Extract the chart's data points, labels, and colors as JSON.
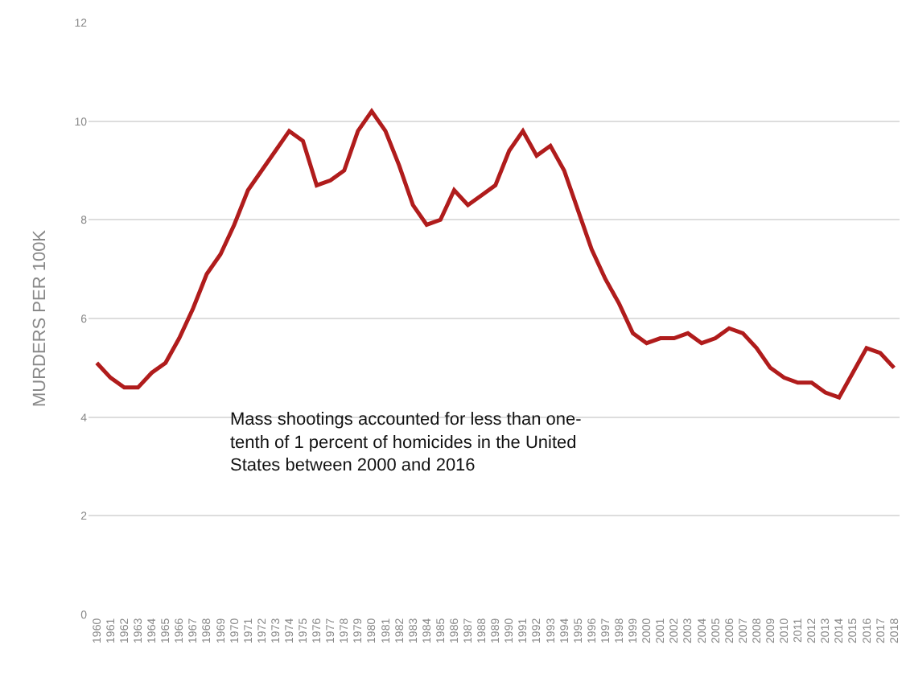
{
  "chart_data": {
    "type": "line",
    "ylabel": "MURDERS PER 100K",
    "categories": [
      "1960",
      "1961",
      "1962",
      "1963",
      "1964",
      "1965",
      "1966",
      "1967",
      "1968",
      "1969",
      "1970",
      "1971",
      "1972",
      "1973",
      "1974",
      "1975",
      "1976",
      "1977",
      "1978",
      "1979",
      "1980",
      "1981",
      "1982",
      "1983",
      "1984",
      "1985",
      "1986",
      "1987",
      "1988",
      "1989",
      "1990",
      "1991",
      "1992",
      "1993",
      "1994",
      "1995",
      "1996",
      "1997",
      "1998",
      "1999",
      "2000",
      "2001",
      "2002",
      "2003",
      "2004",
      "2005",
      "2006",
      "2007",
      "2008",
      "2009",
      "2010",
      "2011",
      "2012",
      "2013",
      "2014",
      "2015",
      "2016",
      "2017",
      "2018"
    ],
    "series": [
      {
        "color": "#b01c1c",
        "values": [
          5.1,
          4.8,
          4.6,
          4.6,
          4.9,
          5.1,
          5.6,
          6.2,
          6.9,
          7.3,
          7.9,
          8.6,
          9.0,
          9.4,
          9.8,
          9.6,
          8.7,
          8.8,
          9.0,
          9.8,
          10.2,
          9.8,
          9.1,
          8.3,
          7.9,
          8.0,
          8.6,
          8.3,
          8.5,
          8.7,
          9.4,
          9.8,
          9.3,
          9.5,
          9.0,
          8.2,
          7.4,
          6.8,
          6.3,
          5.7,
          5.5,
          5.6,
          5.6,
          5.7,
          5.5,
          5.6,
          5.8,
          5.7,
          5.4,
          5.0,
          4.8,
          4.7,
          4.7,
          4.5,
          4.4,
          4.9,
          5.4,
          5.3,
          5.0
        ]
      }
    ],
    "ylim": [
      0,
      12
    ],
    "yticks": [
      0,
      2,
      4,
      6,
      8,
      10,
      12
    ],
    "grid": "y",
    "legend": false,
    "marker": "none",
    "line_style": "solid",
    "annotations": [
      "Mass shootings accounted for less than one-\ntenth of 1 percent of homicides in the United\nStates between 2000 and 2016"
    ]
  }
}
